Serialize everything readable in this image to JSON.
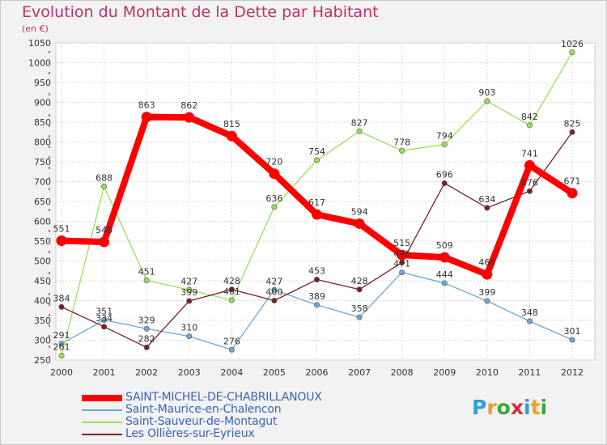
{
  "header": {
    "title": "Evolution du Montant de la Dette par Habitant",
    "subtitle": "(en €)"
  },
  "brand": {
    "letters": [
      "P",
      "r",
      "o",
      "x",
      "i",
      "t",
      "i"
    ],
    "colors": [
      "#2e9fd8",
      "#f0a020",
      "#3aa83a",
      "#d83030",
      "#2e9fd8",
      "#f0a020",
      "#3aa83a"
    ]
  },
  "chart_data": {
    "type": "line",
    "x": [
      "2000",
      "2001",
      "2002",
      "2003",
      "2004",
      "2005",
      "2006",
      "2007",
      "2008",
      "2009",
      "2010",
      "2011",
      "2012"
    ],
    "ylim": [
      250,
      1050
    ],
    "yticks": [
      250,
      300,
      350,
      400,
      450,
      500,
      550,
      600,
      650,
      700,
      750,
      800,
      850,
      900,
      950,
      1000,
      1050
    ],
    "grid": true,
    "legend_position": "bottom-left",
    "series": [
      {
        "name": "SAINT-MICHEL-DE-CHABRILLANOUX",
        "color": "#ff0000",
        "values": [
          551,
          548,
          863,
          862,
          815,
          720,
          617,
          594,
          515,
          509,
          466,
          741,
          671
        ],
        "labels": [
          "551",
          "548",
          "863",
          "862",
          "815",
          "720",
          "617",
          "594",
          "515",
          "509",
          "466",
          "741",
          "671"
        ]
      },
      {
        "name": "Saint-Maurice-en-Chalencon",
        "color": "#6ca7d6",
        "values": [
          291,
          351,
          329,
          310,
          276,
          427,
          389,
          358,
          471,
          444,
          399,
          348,
          301
        ],
        "labels": [
          "291",
          "351",
          "329",
          "310",
          "276",
          "427",
          "389",
          "358",
          "471",
          "444",
          "399",
          "348",
          "301"
        ]
      },
      {
        "name": "Saint-Sauveur-de-Montagut",
        "color": "#99e05a",
        "values": [
          261,
          688,
          451,
          427,
          401,
          636,
          754,
          827,
          778,
          794,
          903,
          842,
          1026
        ],
        "labels": [
          "261",
          "688",
          "451",
          "427",
          "401",
          "636",
          "754",
          "827",
          "778",
          "794",
          "903",
          "842",
          "1026"
        ]
      },
      {
        "name": "Les Ollières-sur-Eyrieux",
        "color": "#7a1f2a",
        "values": [
          384,
          334,
          282,
          399,
          428,
          400,
          453,
          428,
          496,
          696,
          634,
          676,
          825
        ],
        "labels": [
          "384",
          "334",
          "282",
          "399",
          "428",
          "400",
          "453",
          "428",
          "496",
          "696",
          "634",
          "676",
          "825"
        ]
      }
    ]
  }
}
